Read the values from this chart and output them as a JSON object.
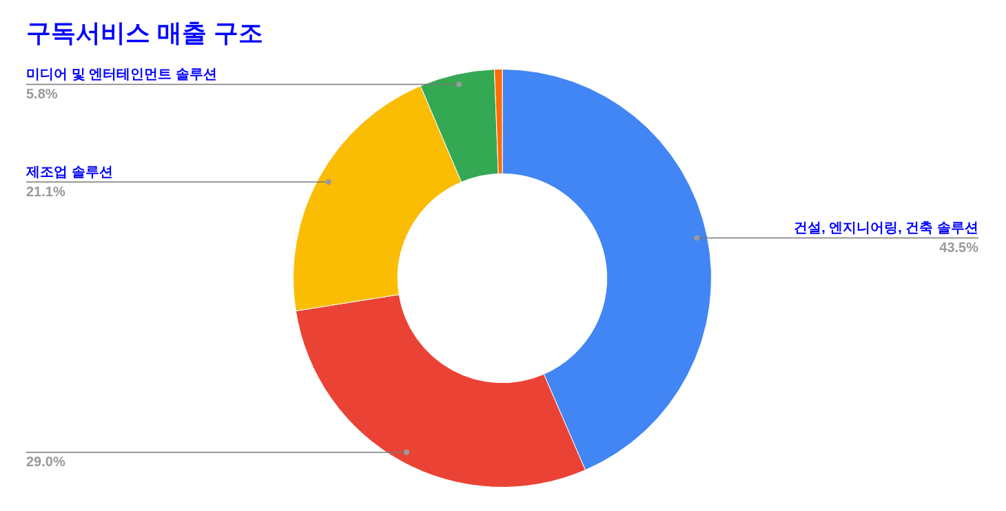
{
  "chart_data": {
    "type": "donut",
    "title": "구독서비스 매출 구조",
    "categories": [
      "건설, 엔지니어링, 건축 솔루션",
      null,
      "제조업 솔루션",
      "미디어 및 엔터테인먼트 솔루션",
      null
    ],
    "values": [
      43.5,
      29.0,
      21.1,
      5.8,
      0.6
    ],
    "colors": [
      "#4285f4",
      "#ea4335",
      "#fbbc04",
      "#34a853",
      "#ff6d01"
    ],
    "value_labels": [
      "43.5%",
      "29.0%",
      "21.1%",
      "5.8%",
      null
    ],
    "legend": false
  }
}
